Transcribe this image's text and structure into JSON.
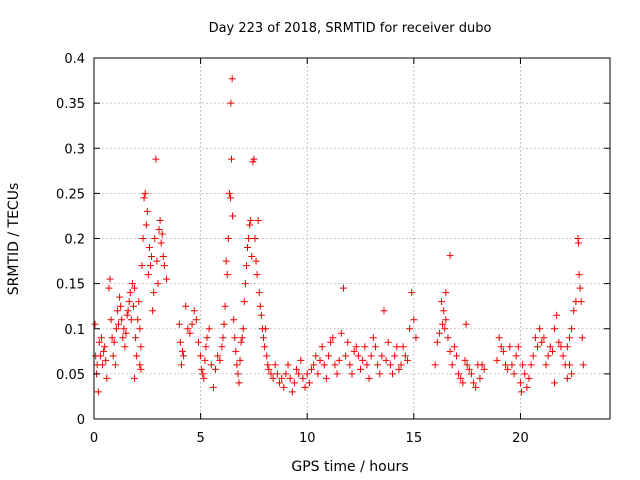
{
  "chart_data": {
    "type": "scatter",
    "title": "Day 223 of 2018, SRMTID for receiver dubo",
    "xlabel": "GPS time / hours",
    "ylabel": "SRMTID / TECUs",
    "xlim": [
      0,
      24.2
    ],
    "ylim": [
      0,
      0.4
    ],
    "xticks": [
      0,
      5,
      10,
      15,
      20
    ],
    "xtick_labels": [
      "0",
      "5",
      "10",
      "15",
      "20"
    ],
    "yticks": [
      0,
      0.05,
      0.1,
      0.15,
      0.2,
      0.25,
      0.3,
      0.35,
      0.4
    ],
    "ytick_labels": [
      "0",
      "0.05",
      "0.1",
      "0.15",
      "0.2",
      "0.25",
      "0.3",
      "0.35",
      "0.4"
    ],
    "grid": true,
    "marker": "+",
    "series": [
      {
        "name": "SRMTID",
        "color": "#ee0000",
        "points": [
          [
            0.05,
            0.105
          ],
          [
            0.08,
            0.07
          ],
          [
            0.12,
            0.05
          ],
          [
            0.15,
            0.06
          ],
          [
            0.2,
            0.03
          ],
          [
            0.25,
            0.085
          ],
          [
            0.3,
            0.07
          ],
          [
            0.35,
            0.09
          ],
          [
            0.4,
            0.06
          ],
          [
            0.45,
            0.075
          ],
          [
            0.5,
            0.08
          ],
          [
            0.55,
            0.065
          ],
          [
            0.6,
            0.045
          ],
          [
            0.7,
            0.145
          ],
          [
            0.75,
            0.155
          ],
          [
            0.8,
            0.11
          ],
          [
            0.85,
            0.09
          ],
          [
            0.9,
            0.07
          ],
          [
            0.95,
            0.085
          ],
          [
            1.0,
            0.06
          ],
          [
            1.05,
            0.1
          ],
          [
            1.1,
            0.12
          ],
          [
            1.15,
            0.105
          ],
          [
            1.2,
            0.135
          ],
          [
            1.25,
            0.125
          ],
          [
            1.3,
            0.11
          ],
          [
            1.35,
            0.09
          ],
          [
            1.4,
            0.1
          ],
          [
            1.45,
            0.08
          ],
          [
            1.5,
            0.095
          ],
          [
            1.55,
            0.115
          ],
          [
            1.6,
            0.12
          ],
          [
            1.65,
            0.13
          ],
          [
            1.7,
            0.14
          ],
          [
            1.75,
            0.11
          ],
          [
            1.8,
            0.15
          ],
          [
            1.85,
            0.125
          ],
          [
            1.9,
            0.145
          ],
          [
            1.95,
            0.09
          ],
          [
            2.0,
            0.07
          ],
          [
            2.05,
            0.11
          ],
          [
            2.1,
            0.13
          ],
          [
            2.15,
            0.1
          ],
          [
            2.2,
            0.08
          ],
          [
            2.25,
            0.17
          ],
          [
            2.3,
            0.2
          ],
          [
            2.35,
            0.245
          ],
          [
            2.4,
            0.25
          ],
          [
            2.45,
            0.215
          ],
          [
            2.5,
            0.23
          ],
          [
            2.55,
            0.16
          ],
          [
            2.6,
            0.19
          ],
          [
            2.65,
            0.17
          ],
          [
            2.7,
            0.18
          ],
          [
            2.75,
            0.12
          ],
          [
            2.8,
            0.14
          ],
          [
            2.85,
            0.2
          ],
          [
            2.9,
            0.288
          ],
          [
            2.95,
            0.175
          ],
          [
            3.0,
            0.15
          ],
          [
            3.05,
            0.21
          ],
          [
            3.1,
            0.22
          ],
          [
            3.15,
            0.195
          ],
          [
            3.2,
            0.205
          ],
          [
            3.25,
            0.18
          ],
          [
            3.3,
            0.17
          ],
          [
            3.4,
            0.155
          ],
          [
            2.15,
            0.06
          ],
          [
            2.2,
            0.055
          ],
          [
            1.9,
            0.045
          ],
          [
            4.0,
            0.105
          ],
          [
            4.05,
            0.085
          ],
          [
            4.1,
            0.06
          ],
          [
            4.15,
            0.075
          ],
          [
            4.2,
            0.07
          ],
          [
            4.3,
            0.125
          ],
          [
            4.4,
            0.1
          ],
          [
            4.5,
            0.095
          ],
          [
            4.6,
            0.105
          ],
          [
            4.7,
            0.12
          ],
          [
            4.8,
            0.11
          ],
          [
            4.9,
            0.085
          ],
          [
            5.0,
            0.07
          ],
          [
            5.05,
            0.055
          ],
          [
            5.1,
            0.05
          ],
          [
            5.15,
            0.045
          ],
          [
            5.2,
            0.065
          ],
          [
            5.25,
            0.08
          ],
          [
            5.3,
            0.09
          ],
          [
            5.4,
            0.1
          ],
          [
            5.5,
            0.06
          ],
          [
            5.6,
            0.035
          ],
          [
            5.7,
            0.055
          ],
          [
            5.8,
            0.07
          ],
          [
            5.9,
            0.065
          ],
          [
            6.0,
            0.08
          ],
          [
            6.05,
            0.09
          ],
          [
            6.1,
            0.105
          ],
          [
            6.15,
            0.125
          ],
          [
            6.2,
            0.175
          ],
          [
            6.25,
            0.16
          ],
          [
            6.3,
            0.2
          ],
          [
            6.35,
            0.25
          ],
          [
            6.4,
            0.245
          ],
          [
            6.42,
            0.35
          ],
          [
            6.45,
            0.288
          ],
          [
            6.48,
            0.377
          ],
          [
            6.5,
            0.225
          ],
          [
            6.55,
            0.11
          ],
          [
            6.6,
            0.09
          ],
          [
            6.65,
            0.075
          ],
          [
            6.7,
            0.06
          ],
          [
            6.75,
            0.05
          ],
          [
            6.8,
            0.04
          ],
          [
            6.85,
            0.065
          ],
          [
            6.9,
            0.085
          ],
          [
            6.95,
            0.09
          ],
          [
            7.0,
            0.1
          ],
          [
            7.05,
            0.13
          ],
          [
            7.1,
            0.15
          ],
          [
            7.15,
            0.17
          ],
          [
            7.2,
            0.19
          ],
          [
            7.25,
            0.2
          ],
          [
            7.3,
            0.215
          ],
          [
            7.35,
            0.22
          ],
          [
            7.4,
            0.18
          ],
          [
            7.45,
            0.285
          ],
          [
            7.5,
            0.288
          ],
          [
            7.55,
            0.2
          ],
          [
            7.6,
            0.175
          ],
          [
            7.65,
            0.16
          ],
          [
            7.7,
            0.22
          ],
          [
            7.75,
            0.14
          ],
          [
            7.8,
            0.125
          ],
          [
            7.85,
            0.115
          ],
          [
            7.9,
            0.1
          ],
          [
            7.95,
            0.09
          ],
          [
            8.0,
            0.08
          ],
          [
            8.05,
            0.1
          ],
          [
            8.1,
            0.07
          ],
          [
            8.15,
            0.06
          ],
          [
            8.2,
            0.055
          ],
          [
            8.3,
            0.05
          ],
          [
            8.4,
            0.045
          ],
          [
            8.5,
            0.06
          ],
          [
            8.6,
            0.05
          ],
          [
            8.7,
            0.04
          ],
          [
            8.8,
            0.045
          ],
          [
            8.9,
            0.035
          ],
          [
            9.0,
            0.05
          ],
          [
            9.1,
            0.06
          ],
          [
            9.2,
            0.045
          ],
          [
            9.3,
            0.03
          ],
          [
            9.4,
            0.04
          ],
          [
            9.5,
            0.055
          ],
          [
            9.6,
            0.05
          ],
          [
            9.7,
            0.065
          ],
          [
            9.8,
            0.045
          ],
          [
            9.9,
            0.035
          ],
          [
            10.0,
            0.05
          ],
          [
            10.1,
            0.04
          ],
          [
            10.2,
            0.055
          ],
          [
            10.3,
            0.06
          ],
          [
            10.4,
            0.07
          ],
          [
            10.5,
            0.05
          ],
          [
            10.6,
            0.065
          ],
          [
            10.7,
            0.08
          ],
          [
            10.8,
            0.06
          ],
          [
            10.9,
            0.045
          ],
          [
            11.0,
            0.07
          ],
          [
            11.1,
            0.085
          ],
          [
            11.2,
            0.09
          ],
          [
            11.3,
            0.06
          ],
          [
            11.4,
            0.05
          ],
          [
            11.5,
            0.065
          ],
          [
            11.6,
            0.095
          ],
          [
            11.7,
            0.145
          ],
          [
            11.8,
            0.07
          ],
          [
            11.9,
            0.085
          ],
          [
            12.0,
            0.06
          ],
          [
            12.1,
            0.05
          ],
          [
            12.2,
            0.075
          ],
          [
            12.3,
            0.08
          ],
          [
            12.4,
            0.07
          ],
          [
            12.5,
            0.055
          ],
          [
            12.6,
            0.065
          ],
          [
            12.7,
            0.08
          ],
          [
            12.8,
            0.06
          ],
          [
            12.9,
            0.045
          ],
          [
            13.0,
            0.07
          ],
          [
            13.1,
            0.09
          ],
          [
            13.2,
            0.08
          ],
          [
            13.3,
            0.06
          ],
          [
            13.4,
            0.05
          ],
          [
            13.5,
            0.07
          ],
          [
            13.6,
            0.12
          ],
          [
            13.7,
            0.065
          ],
          [
            13.8,
            0.085
          ],
          [
            13.9,
            0.06
          ],
          [
            14.0,
            0.05
          ],
          [
            14.1,
            0.07
          ],
          [
            14.2,
            0.08
          ],
          [
            14.3,
            0.055
          ],
          [
            14.4,
            0.06
          ],
          [
            14.5,
            0.08
          ],
          [
            14.6,
            0.07
          ],
          [
            14.7,
            0.065
          ],
          [
            14.8,
            0.1
          ],
          [
            14.9,
            0.14
          ],
          [
            15.0,
            0.11
          ],
          [
            15.1,
            0.09
          ],
          [
            16.0,
            0.06
          ],
          [
            16.1,
            0.085
          ],
          [
            16.2,
            0.095
          ],
          [
            16.3,
            0.13
          ],
          [
            16.4,
            0.12
          ],
          [
            16.5,
            0.14
          ],
          [
            16.6,
            0.09
          ],
          [
            16.7,
            0.075
          ],
          [
            16.8,
            0.06
          ],
          [
            16.9,
            0.08
          ],
          [
            17.0,
            0.07
          ],
          [
            17.1,
            0.05
          ],
          [
            17.2,
            0.045
          ],
          [
            17.3,
            0.04
          ],
          [
            17.4,
            0.065
          ],
          [
            17.5,
            0.06
          ],
          [
            17.6,
            0.055
          ],
          [
            17.7,
            0.05
          ],
          [
            17.8,
            0.04
          ],
          [
            17.9,
            0.035
          ],
          [
            18.0,
            0.06
          ],
          [
            18.1,
            0.045
          ],
          [
            18.2,
            0.06
          ],
          [
            18.3,
            0.055
          ],
          [
            16.7,
            0.181
          ],
          [
            16.5,
            0.11
          ],
          [
            16.45,
            0.1
          ],
          [
            16.35,
            0.105
          ],
          [
            17.45,
            0.105
          ],
          [
            18.9,
            0.065
          ],
          [
            19.0,
            0.09
          ],
          [
            19.1,
            0.08
          ],
          [
            19.2,
            0.075
          ],
          [
            19.3,
            0.06
          ],
          [
            19.4,
            0.055
          ],
          [
            19.5,
            0.08
          ],
          [
            19.6,
            0.06
          ],
          [
            19.7,
            0.05
          ],
          [
            19.8,
            0.07
          ],
          [
            19.9,
            0.08
          ],
          [
            20.0,
            0.04
          ],
          [
            20.05,
            0.03
          ],
          [
            20.1,
            0.06
          ],
          [
            20.2,
            0.05
          ],
          [
            20.3,
            0.035
          ],
          [
            20.4,
            0.045
          ],
          [
            20.5,
            0.06
          ],
          [
            20.6,
            0.07
          ],
          [
            20.7,
            0.09
          ],
          [
            20.8,
            0.08
          ],
          [
            20.9,
            0.1
          ],
          [
            21.0,
            0.085
          ],
          [
            21.1,
            0.09
          ],
          [
            21.2,
            0.06
          ],
          [
            21.3,
            0.07
          ],
          [
            21.4,
            0.08
          ],
          [
            21.5,
            0.075
          ],
          [
            21.6,
            0.1
          ],
          [
            21.7,
            0.115
          ],
          [
            21.8,
            0.085
          ],
          [
            21.9,
            0.08
          ],
          [
            22.0,
            0.07
          ],
          [
            22.1,
            0.06
          ],
          [
            22.2,
            0.08
          ],
          [
            22.3,
            0.09
          ],
          [
            22.4,
            0.1
          ],
          [
            22.5,
            0.12
          ],
          [
            22.6,
            0.13
          ],
          [
            22.7,
            0.2
          ],
          [
            22.72,
            0.195
          ],
          [
            22.75,
            0.16
          ],
          [
            22.8,
            0.145
          ],
          [
            22.85,
            0.13
          ],
          [
            22.9,
            0.09
          ],
          [
            22.95,
            0.06
          ],
          [
            22.3,
            0.06
          ],
          [
            22.4,
            0.05
          ],
          [
            22.2,
            0.045
          ],
          [
            21.6,
            0.04
          ]
        ]
      }
    ]
  }
}
